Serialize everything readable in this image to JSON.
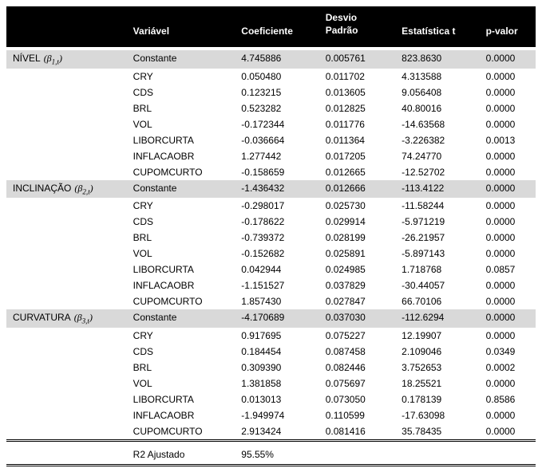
{
  "header": {
    "blank1": "",
    "variavel": "Variável",
    "coeficiente": "Coeficiente",
    "desvio_padrao_top": "Desvio",
    "desvio_padrao_bottom": "Padrão",
    "t_stat": "Estatística t",
    "p_valor": "p-valor"
  },
  "groups": [
    {
      "label_plain": "NÍVEL",
      "beta_html": "(β",
      "beta_sub": "1,t",
      "close": ")",
      "highlight": true,
      "rows": [
        {
          "var": "Constante",
          "coef": "4.745886",
          "dp": "0.005761",
          "t": "823.8630",
          "p": "0.0000"
        },
        {
          "var": "CRY",
          "coef": "0.050480",
          "dp": "0.011702",
          "t": "4.313588",
          "p": "0.0000"
        },
        {
          "var": "CDS",
          "coef": "0.123215",
          "dp": "0.013605",
          "t": "9.056408",
          "p": "0.0000"
        },
        {
          "var": "BRL",
          "coef": "0.523282",
          "dp": "0.012825",
          "t": "40.80016",
          "p": "0.0000"
        },
        {
          "var": "VOL",
          "coef": "-0.172344",
          "dp": "0.011776",
          "t": "-14.63568",
          "p": "0.0000"
        },
        {
          "var": "LIBORCURTA",
          "coef": "-0.036664",
          "dp": "0.011364",
          "t": "-3.226382",
          "p": "0.0013"
        },
        {
          "var": "INFLACAOBR",
          "coef": "1.277442",
          "dp": "0.017205",
          "t": "74.24770",
          "p": "0.0000"
        },
        {
          "var": "CUPOMCURTO",
          "coef": "-0.158659",
          "dp": "0.012665",
          "t": "-12.52702",
          "p": "0.0000"
        }
      ]
    },
    {
      "label_plain": "INCLINAÇÃO",
      "beta_html": "(β",
      "beta_sub": "2,t",
      "close": ")",
      "highlight": true,
      "rows": [
        {
          "var": "Constante",
          "coef": "-1.436432",
          "dp": "0.012666",
          "t": "-113.4122",
          "p": "0.0000"
        },
        {
          "var": "CRY",
          "coef": "-0.298017",
          "dp": "0.025730",
          "t": "-11.58244",
          "p": "0.0000"
        },
        {
          "var": "CDS",
          "coef": "-0.178622",
          "dp": "0.029914",
          "t": "-5.971219",
          "p": "0.0000"
        },
        {
          "var": "BRL",
          "coef": "-0.739372",
          "dp": "0.028199",
          "t": "-26.21957",
          "p": "0.0000"
        },
        {
          "var": "VOL",
          "coef": "-0.152682",
          "dp": "0.025891",
          "t": "-5.897143",
          "p": "0.0000"
        },
        {
          "var": "LIBORCURTA",
          "coef": "0.042944",
          "dp": "0.024985",
          "t": "1.718768",
          "p": "0.0857"
        },
        {
          "var": "INFLACAOBR",
          "coef": "-1.151527",
          "dp": "0.037829",
          "t": "-30.44057",
          "p": "0.0000"
        },
        {
          "var": "CUPOMCURTO",
          "coef": "1.857430",
          "dp": "0.027847",
          "t": "66.70106",
          "p": "0.0000"
        }
      ]
    },
    {
      "label_plain": "CURVATURA",
      "beta_html": "(β",
      "beta_sub": "3,t",
      "close": ")",
      "highlight": true,
      "rows": [
        {
          "var": "Constante",
          "coef": "-4.170689",
          "dp": "0.037030",
          "t": "-112.6294",
          "p": "0.0000"
        },
        {
          "var": "CRY",
          "coef": "0.917695",
          "dp": "0.075227",
          "t": "12.19907",
          "p": "0.0000"
        },
        {
          "var": "CDS",
          "coef": "0.184454",
          "dp": "0.087458",
          "t": "2.109046",
          "p": "0.0349"
        },
        {
          "var": "BRL",
          "coef": "0.309390",
          "dp": "0.082446",
          "t": "3.752653",
          "p": "0.0002"
        },
        {
          "var": "VOL",
          "coef": "1.381858",
          "dp": "0.075697",
          "t": "18.25521",
          "p": "0.0000"
        },
        {
          "var": "LIBORCURTA",
          "coef": "0.013013",
          "dp": "0.073050",
          "t": "0.178139",
          "p": "0.8586"
        },
        {
          "var": "INFLACAOBR",
          "coef": "-1.949974",
          "dp": "0.110599",
          "t": "-17.63098",
          "p": "0.0000"
        },
        {
          "var": "CUPOMCURTO",
          "coef": "2.913424",
          "dp": "0.081416",
          "t": "35.78435",
          "p": "0.0000"
        }
      ]
    }
  ],
  "footer": {
    "label": "R2 Ajustado",
    "value": "95.55%"
  }
}
